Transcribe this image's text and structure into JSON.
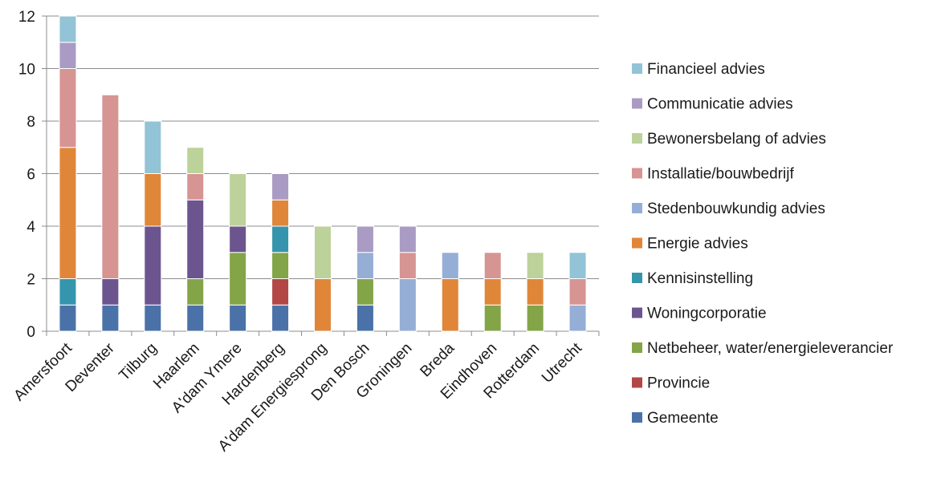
{
  "chart_data": {
    "type": "bar",
    "stacked": true,
    "title": "",
    "xlabel": "",
    "ylabel": "",
    "ylim": [
      0,
      12
    ],
    "yticks": [
      0,
      2,
      4,
      6,
      8,
      10,
      12
    ],
    "grid": true,
    "legend_position": "right",
    "categories": [
      "Amersfoort",
      "Deventer",
      "Tilburg",
      "Haarlem",
      "A'dam Ymere",
      "Hardenberg",
      "A'dam Energiesprong",
      "Den Bosch",
      "Groningen",
      "Breda",
      "Eindhoven",
      "Rotterdam",
      "Utrecht"
    ],
    "series": [
      {
        "name": "Gemeente",
        "color": "#4a72a8",
        "values": [
          1,
          1,
          1,
          1,
          1,
          1,
          0,
          1,
          0,
          0,
          0,
          0,
          0
        ]
      },
      {
        "name": "Provincie",
        "color": "#b24745",
        "values": [
          0,
          0,
          0,
          0,
          0,
          1,
          0,
          0,
          0,
          0,
          0,
          0,
          0
        ]
      },
      {
        "name": "Netbeheer, water/energieleverancier",
        "color": "#84a448",
        "values": [
          0,
          0,
          0,
          1,
          2,
          1,
          0,
          1,
          0,
          0,
          1,
          1,
          0
        ]
      },
      {
        "name": "Woningcorporatie",
        "color": "#6c558f",
        "values": [
          0,
          1,
          3,
          3,
          1,
          0,
          0,
          0,
          0,
          0,
          0,
          0,
          0
        ]
      },
      {
        "name": "Kennisinstelling",
        "color": "#3595ac",
        "values": [
          1,
          0,
          0,
          0,
          0,
          1,
          0,
          0,
          0,
          0,
          0,
          0,
          0
        ]
      },
      {
        "name": "Energie advies",
        "color": "#e08639",
        "values": [
          5,
          0,
          2,
          0,
          0,
          1,
          2,
          0,
          0,
          2,
          1,
          1,
          0
        ]
      },
      {
        "name": "Stedenbouwkundig advies",
        "color": "#95aed6",
        "values": [
          0,
          0,
          0,
          0,
          0,
          0,
          0,
          1,
          2,
          1,
          0,
          0,
          1
        ]
      },
      {
        "name": "Installatie/bouwbedrijf",
        "color": "#d69493",
        "values": [
          3,
          7,
          0,
          1,
          0,
          0,
          0,
          0,
          1,
          0,
          1,
          0,
          1
        ]
      },
      {
        "name": "Bewonersbelang of advies",
        "color": "#bcd29a",
        "values": [
          0,
          0,
          0,
          1,
          2,
          0,
          2,
          0,
          0,
          0,
          0,
          1,
          0
        ]
      },
      {
        "name": "Communicatie advies",
        "color": "#a99bc4",
        "values": [
          1,
          0,
          0,
          0,
          0,
          1,
          0,
          1,
          1,
          0,
          0,
          0,
          0
        ]
      },
      {
        "name": "Financieel advies",
        "color": "#93c3d6",
        "values": [
          1,
          0,
          2,
          0,
          0,
          0,
          0,
          0,
          0,
          0,
          0,
          0,
          1
        ]
      }
    ]
  }
}
